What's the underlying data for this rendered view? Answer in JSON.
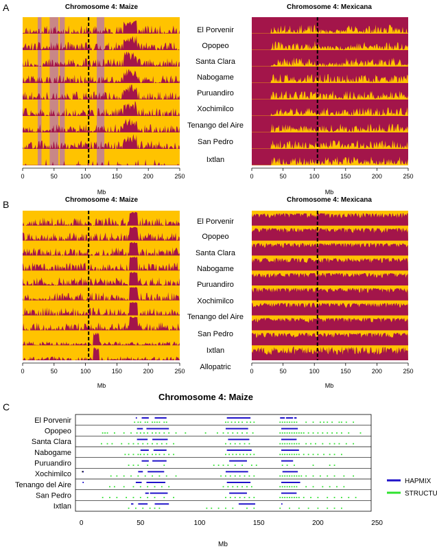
{
  "panel_labels": [
    "A",
    "B",
    "C"
  ],
  "colors": {
    "maize": "#FFC300",
    "mexicana": "#A3154A",
    "hapmix": "#1F12C9",
    "structure": "#2FE22F",
    "pink": "#C88787"
  },
  "chart_data": [
    {
      "type": "area",
      "panel": "A",
      "title": "Chromosome 4: Maize",
      "xlabel": "Mb",
      "xlim": [
        0,
        250
      ],
      "x_ticks": [
        0,
        50,
        100,
        150,
        200,
        250
      ],
      "centromere_mb": 105,
      "populations": [
        "El Porvenir",
        "Opopeo",
        "Santa Clara",
        "Nabogame",
        "Puruandiro",
        "Xochimilco",
        "Tenango del Aire",
        "San Pedro",
        "Ixtlan"
      ],
      "y_meaning": "mean mexicana ancestry (0-1)",
      "highlighted_regions_mb": [
        [
          24,
          30
        ],
        [
          43,
          57
        ],
        [
          59,
          67
        ],
        [
          118,
          130
        ]
      ]
    },
    {
      "type": "area",
      "panel": "A",
      "title": "Chromosome 4: Mexicana",
      "xlabel": "Mb",
      "xlim": [
        0,
        250
      ],
      "x_ticks": [
        0,
        50,
        100,
        150,
        200,
        250
      ],
      "centromere_mb": 105,
      "populations": [
        "El Porvenir",
        "Opopeo",
        "Santa Clara",
        "Nabogame",
        "Puruandiro",
        "Xochimilco",
        "Tenango del Aire",
        "San Pedro",
        "Ixtlan"
      ],
      "y_meaning": "mean maize ancestry (0-1)"
    },
    {
      "type": "area",
      "panel": "B",
      "title": "Chromosome 4: Maize",
      "xlabel": "Mb",
      "xlim": [
        0,
        250
      ],
      "x_ticks": [
        0,
        50,
        100,
        150,
        200,
        250
      ],
      "centromere_mb": 105,
      "populations": [
        "El Porvenir",
        "Opopeo",
        "Santa Clara",
        "Nabogame",
        "Puruandiro",
        "Xochimilco",
        "Tenango del Aire",
        "San Pedro",
        "Ixtlan",
        "Allopatric"
      ],
      "y_meaning": "mean mexicana ancestry (0-1)",
      "high_block_mb": [
        170,
        183
      ]
    },
    {
      "type": "area",
      "panel": "B",
      "title": "Chromosome 4: Mexicana",
      "xlabel": "Mb",
      "xlim": [
        0,
        250
      ],
      "x_ticks": [
        0,
        50,
        100,
        150,
        200,
        250
      ],
      "centromere_mb": 105,
      "populations": [
        "El Porvenir",
        "Opopeo",
        "Santa Clara",
        "Nabogame",
        "Puruandiro",
        "Xochimilco",
        "Tenango del Aire",
        "San Pedro",
        "Ixtlan",
        "Allopatric"
      ],
      "y_meaning": "mean maize ancestry (0-1)"
    },
    {
      "type": "scatter",
      "panel": "C",
      "title": "Chromosome 4: Maize",
      "xlabel": "Mb",
      "xlim": [
        -5,
        245
      ],
      "x_ticks": [
        0,
        50,
        100,
        150,
        200,
        250
      ],
      "legend": [
        "HAPMIX",
        "STRUCTURE"
      ],
      "legend_position": "right",
      "populations": [
        "El Porvenir",
        "Opopeo",
        "Santa Clara",
        "Nabogame",
        "Puruandiro",
        "Xochimilco",
        "Tenango del Aire",
        "San Pedro",
        "Ixtlan"
      ],
      "hapmix_segments_mb": [
        [
          [
            46,
            47
          ],
          [
            51,
            57
          ],
          [
            62,
            72
          ],
          [
            123,
            143
          ],
          [
            168,
            172
          ],
          [
            173,
            179
          ],
          [
            180,
            182
          ]
        ],
        [
          [
            47,
            52
          ],
          [
            55,
            74
          ],
          [
            122,
            141
          ],
          [
            169,
            183
          ]
        ],
        [
          [
            47,
            56
          ],
          [
            60,
            73
          ],
          [
            124,
            142
          ],
          [
            169,
            182
          ]
        ],
        [
          [
            50,
            57
          ],
          [
            61,
            72
          ],
          [
            123,
            144
          ],
          [
            169,
            184
          ]
        ],
        [
          [
            51,
            57
          ],
          [
            60,
            72
          ],
          [
            125,
            140
          ],
          [
            169,
            179
          ]
        ],
        [
          [
            1,
            2
          ],
          [
            48,
            52
          ],
          [
            56,
            70
          ],
          [
            122,
            141
          ],
          [
            170,
            183
          ]
        ],
        [
          [
            1,
            2
          ],
          [
            46,
            51
          ],
          [
            55,
            71
          ],
          [
            123,
            143
          ],
          [
            169,
            185
          ]
        ],
        [
          [
            54,
            57
          ],
          [
            58,
            73
          ],
          [
            125,
            140
          ],
          [
            169,
            182
          ]
        ],
        [
          [
            42,
            44
          ],
          [
            48,
            56
          ],
          [
            62,
            74
          ],
          [
            133,
            147
          ],
          [
            169,
            170
          ]
        ]
      ],
      "structure_points_mb": [
        [
          45,
          48,
          50,
          54,
          56,
          60,
          62,
          64,
          66,
          70,
          72,
          122,
          124,
          127,
          130,
          133,
          136,
          140,
          143,
          146,
          168,
          170,
          172,
          174,
          176,
          178,
          180,
          182,
          190,
          196,
          202,
          205,
          208,
          212,
          218,
          220,
          224,
          230
        ],
        [
          18,
          20,
          22,
          28,
          36,
          42,
          47,
          50,
          53,
          56,
          60,
          63,
          66,
          70,
          74,
          80,
          88,
          105,
          115,
          120,
          124,
          128,
          132,
          136,
          140,
          145,
          168,
          170,
          172,
          174,
          176,
          178,
          180,
          182,
          184,
          186,
          188,
          192,
          196,
          200,
          204,
          208,
          212,
          216,
          220,
          226,
          236
        ],
        [
          17,
          22,
          26,
          34,
          40,
          44,
          48,
          52,
          56,
          60,
          64,
          68,
          72,
          78,
          122,
          126,
          130,
          134,
          138,
          142,
          168,
          170,
          172,
          174,
          176,
          178,
          180,
          182,
          184,
          190,
          194,
          198,
          204,
          210,
          214,
          218,
          224,
          230
        ],
        [
          37,
          40,
          44,
          48,
          50,
          53,
          56,
          60,
          63,
          66,
          70,
          74,
          78,
          122,
          125,
          128,
          131,
          134,
          137,
          140,
          143,
          146,
          168,
          170,
          172,
          174,
          176,
          178,
          180,
          182,
          184,
          188,
          192,
          196,
          200,
          205,
          210,
          214,
          220
        ],
        [
          40,
          44,
          48,
          56,
          70,
          112,
          116,
          120,
          124,
          130,
          136,
          144,
          148,
          170,
          174,
          180,
          196,
          210,
          214
        ],
        [
          25,
          30,
          36,
          42,
          48,
          54,
          60,
          66,
          72,
          80,
          118,
          122,
          126,
          130,
          134,
          138,
          142,
          146,
          168,
          170,
          172,
          174,
          176,
          178,
          180,
          182,
          184,
          186,
          190,
          196,
          202,
          208,
          214,
          222,
          230
        ],
        [
          24,
          28,
          36,
          44,
          50,
          56,
          62,
          68,
          74,
          120,
          124,
          128,
          132,
          136,
          140,
          144,
          168,
          170,
          172,
          174,
          176,
          178,
          180,
          182,
          190,
          196,
          204,
          210,
          216,
          222
        ],
        [
          18,
          24,
          30,
          38,
          44,
          50,
          56,
          62,
          70,
          78,
          122,
          126,
          130,
          134,
          138,
          142,
          146,
          168,
          170,
          172,
          174,
          176,
          178,
          180,
          182,
          184,
          188,
          194,
          200,
          208,
          214,
          220,
          226,
          232
        ],
        [
          40,
          46,
          52,
          58,
          62,
          66,
          106,
          110,
          116,
          122,
          128,
          140,
          146,
          168,
          176,
          184,
          192,
          200,
          208,
          214,
          220
        ]
      ],
      "black_points_mb": [
        [],
        [],
        [],
        [],
        [],
        [
          1
        ],
        [],
        [],
        []
      ]
    }
  ]
}
